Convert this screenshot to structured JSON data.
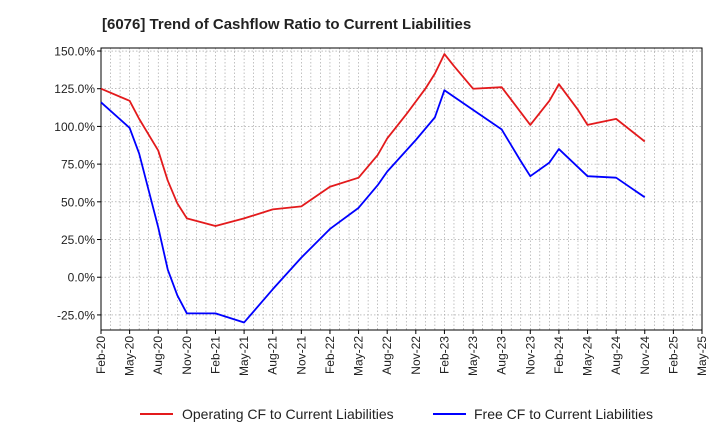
{
  "chart_data": {
    "type": "line",
    "title": "[6076]  Trend of Cashflow Ratio to Current Liabilities",
    "xlabel": "",
    "ylabel": "",
    "ylim": [
      -35,
      152
    ],
    "y_ticks": [
      150,
      125,
      100,
      75,
      50,
      25,
      0,
      -25
    ],
    "y_tick_labels": [
      "150.0%",
      "125.0%",
      "100.0%",
      "75.0%",
      "50.0%",
      "25.0%",
      "0.0%",
      "-25.0%"
    ],
    "x_tick_labels": [
      "Feb-20",
      "May-20",
      "Aug-20",
      "Nov-20",
      "Feb-21",
      "May-21",
      "Aug-21",
      "Nov-21",
      "Feb-22",
      "May-22",
      "Aug-22",
      "Nov-22",
      "Feb-23",
      "May-23",
      "Aug-23",
      "Nov-23",
      "Feb-24",
      "May-24",
      "Aug-24",
      "Nov-24",
      "Feb-25",
      "May-25"
    ],
    "grid": true,
    "legend_position": "bottom",
    "series": [
      {
        "name": "Operating CF to Current Liabilities",
        "color": "#e31a1c",
        "points": [
          [
            "2020-02",
            125
          ],
          [
            "2020-05",
            117
          ],
          [
            "2020-06",
            105
          ],
          [
            "2020-08",
            84
          ],
          [
            "2020-09",
            64
          ],
          [
            "2020-10",
            49
          ],
          [
            "2020-11",
            39
          ],
          [
            "2021-02",
            34
          ],
          [
            "2021-05",
            39
          ],
          [
            "2021-08",
            45
          ],
          [
            "2021-11",
            47
          ],
          [
            "2022-02",
            60
          ],
          [
            "2022-05",
            66
          ],
          [
            "2022-07",
            81
          ],
          [
            "2022-08",
            92
          ],
          [
            "2022-10",
            108
          ],
          [
            "2022-12",
            125
          ],
          [
            "2023-01",
            135
          ],
          [
            "2023-02",
            148
          ],
          [
            "2023-03",
            140
          ],
          [
            "2023-05",
            125
          ],
          [
            "2023-08",
            126
          ],
          [
            "2023-11",
            101
          ],
          [
            "2024-01",
            117
          ],
          [
            "2024-02",
            128
          ],
          [
            "2024-04",
            111
          ],
          [
            "2024-05",
            101
          ],
          [
            "2024-08",
            105
          ],
          [
            "2024-11",
            90
          ]
        ]
      },
      {
        "name": "Free CF to Current Liabilities",
        "color": "#0000ff",
        "points": [
          [
            "2020-02",
            116
          ],
          [
            "2020-05",
            99
          ],
          [
            "2020-06",
            82
          ],
          [
            "2020-08",
            33
          ],
          [
            "2020-09",
            5
          ],
          [
            "2020-10",
            -12
          ],
          [
            "2020-11",
            -24
          ],
          [
            "2021-02",
            -24
          ],
          [
            "2021-05",
            -30
          ],
          [
            "2021-08",
            -8
          ],
          [
            "2021-11",
            13
          ],
          [
            "2022-02",
            32
          ],
          [
            "2022-05",
            46
          ],
          [
            "2022-07",
            61
          ],
          [
            "2022-08",
            70
          ],
          [
            "2022-11",
            91
          ],
          [
            "2023-01",
            106
          ],
          [
            "2023-02",
            124
          ],
          [
            "2023-05",
            111
          ],
          [
            "2023-08",
            98
          ],
          [
            "2023-10",
            77
          ],
          [
            "2023-11",
            67
          ],
          [
            "2024-01",
            76
          ],
          [
            "2024-02",
            85
          ],
          [
            "2024-05",
            67
          ],
          [
            "2024-08",
            66
          ],
          [
            "2024-11",
            53
          ]
        ]
      }
    ]
  }
}
